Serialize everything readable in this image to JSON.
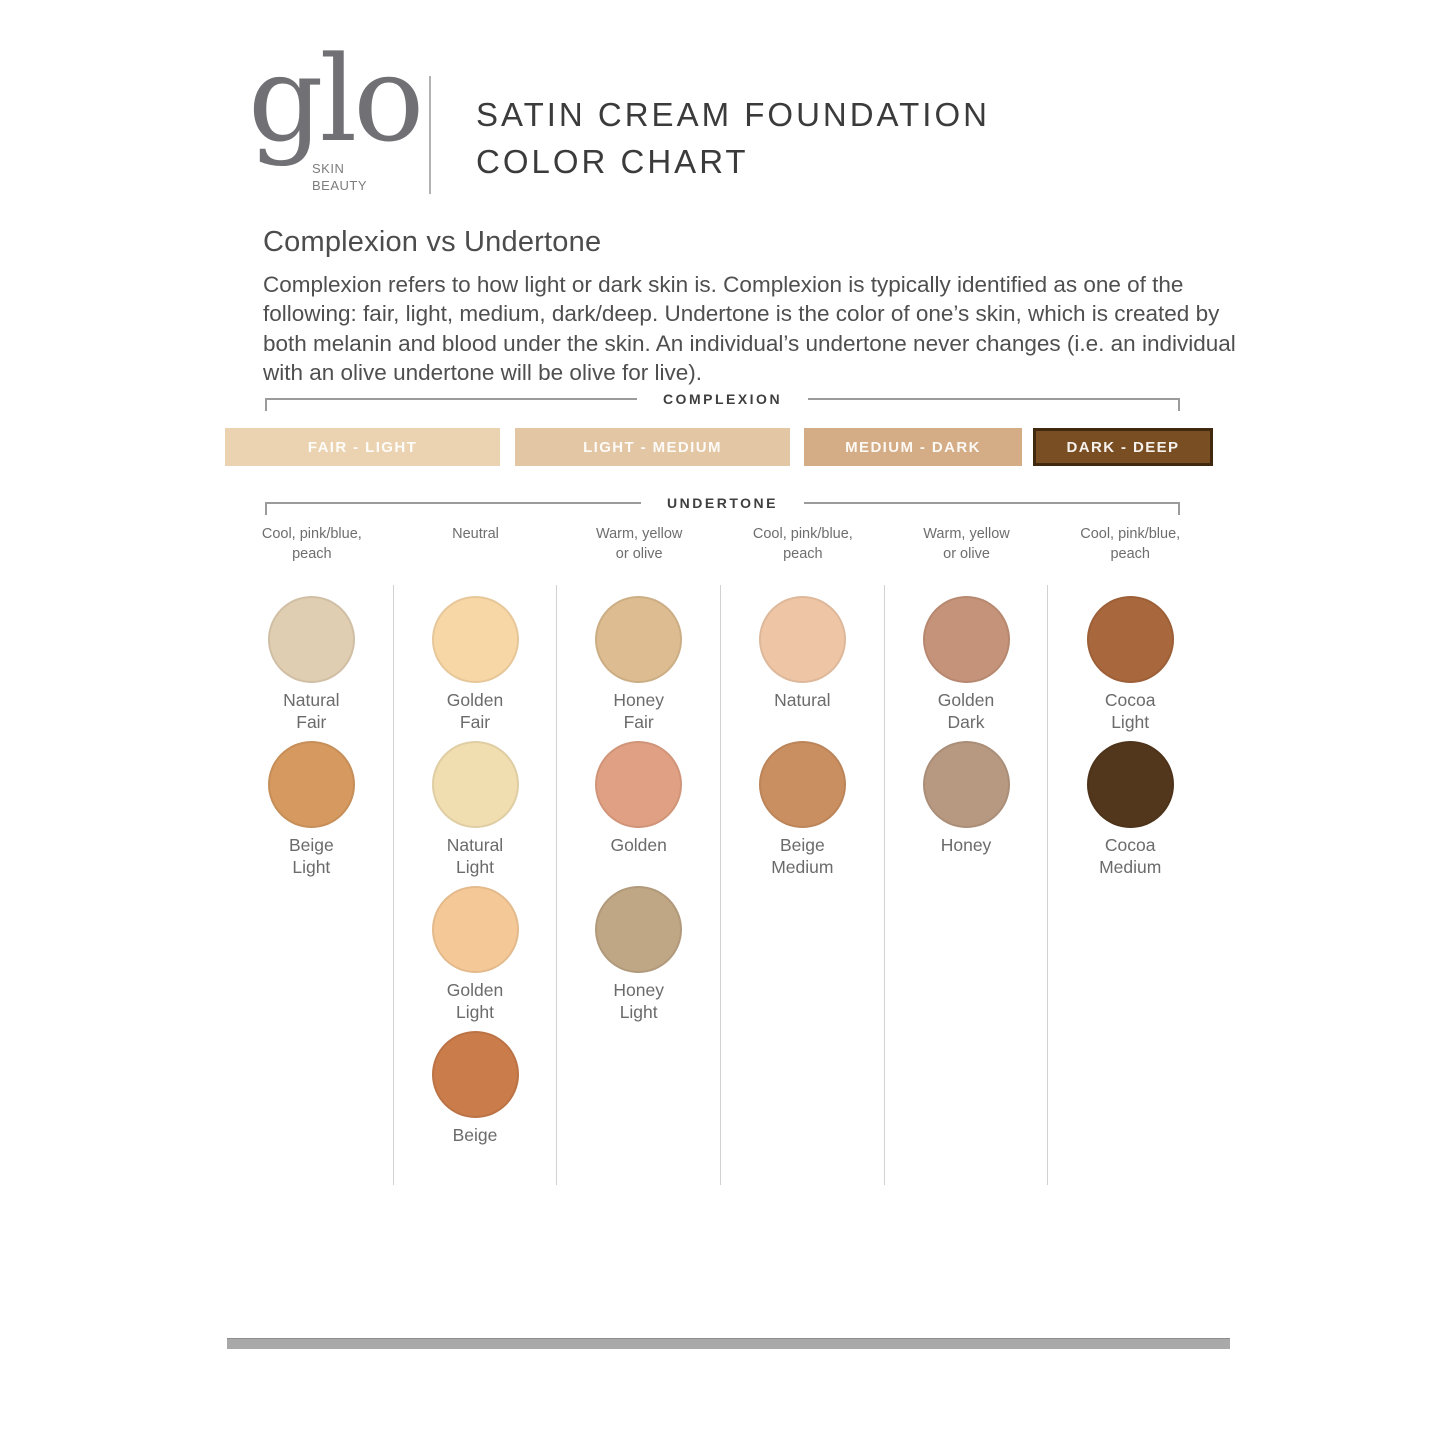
{
  "header": {
    "logo_text": "glo",
    "logo_subtext": "SKIN\nBEAUTY",
    "title_line1": "SATIN CREAM FOUNDATION",
    "title_line2": "COLOR CHART"
  },
  "intro": {
    "heading": "Complexion vs Undertone",
    "body": "Complexion refers to how light or dark skin is. Complexion is typically identified as one of the following: fair, light, medium, dark/deep. Undertone is the color of one’s skin, which is created by both melanin and blood under the skin. An individual’s undertone never changes (i.e. an individual with an olive undertone will be olive for live)."
  },
  "complexion": {
    "label": "COMPLEXION",
    "bars": [
      {
        "label": "FAIR - LIGHT",
        "color": "#ebd3b2"
      },
      {
        "label": "LIGHT - MEDIUM",
        "color": "#e3c6a3"
      },
      {
        "label": "MEDIUM - DARK",
        "color": "#d4ac85"
      },
      {
        "label": "DARK - DEEP",
        "color": "#7a4e23",
        "border": "#40290f"
      }
    ]
  },
  "undertone": {
    "label": "UNDERTONE",
    "columns": [
      {
        "header": "Cool, pink/blue,\npeach",
        "swatches": [
          {
            "name": "Natural\nFair",
            "color": "#e0ceb2"
          },
          {
            "name": "Beige\nLight",
            "color": "#d6995f"
          }
        ]
      },
      {
        "header": "Neutral",
        "swatches": [
          {
            "name": "Golden\nFair",
            "color": "#f8d7a6"
          },
          {
            "name": "Natural\nLight",
            "color": "#f0ddb0"
          },
          {
            "name": "Golden\nLight",
            "color": "#f5c997"
          },
          {
            "name": "Beige",
            "color": "#ca7c4b"
          }
        ]
      },
      {
        "header": "Warm, yellow\nor olive",
        "swatches": [
          {
            "name": "Honey\nFair",
            "color": "#dcbc90"
          },
          {
            "name": "Golden",
            "color": "#e0a083"
          },
          {
            "name": "Honey\nLight",
            "color": "#bfa685"
          }
        ]
      },
      {
        "header": "Cool, pink/blue,\npeach",
        "swatches": [
          {
            "name": "Natural",
            "color": "#eec6a6"
          },
          {
            "name": "Beige\nMedium",
            "color": "#ca8f60"
          }
        ]
      },
      {
        "header": "Warm, yellow\nor olive",
        "swatches": [
          {
            "name": "Golden\nDark",
            "color": "#c59379"
          },
          {
            "name": "Honey",
            "color": "#b79982"
          }
        ]
      },
      {
        "header": "Cool, pink/blue,\npeach",
        "swatches": [
          {
            "name": "Cocoa\nLight",
            "color": "#a8673c"
          },
          {
            "name": "Cocoa\nMedium",
            "color": "#53371d"
          }
        ]
      }
    ]
  }
}
